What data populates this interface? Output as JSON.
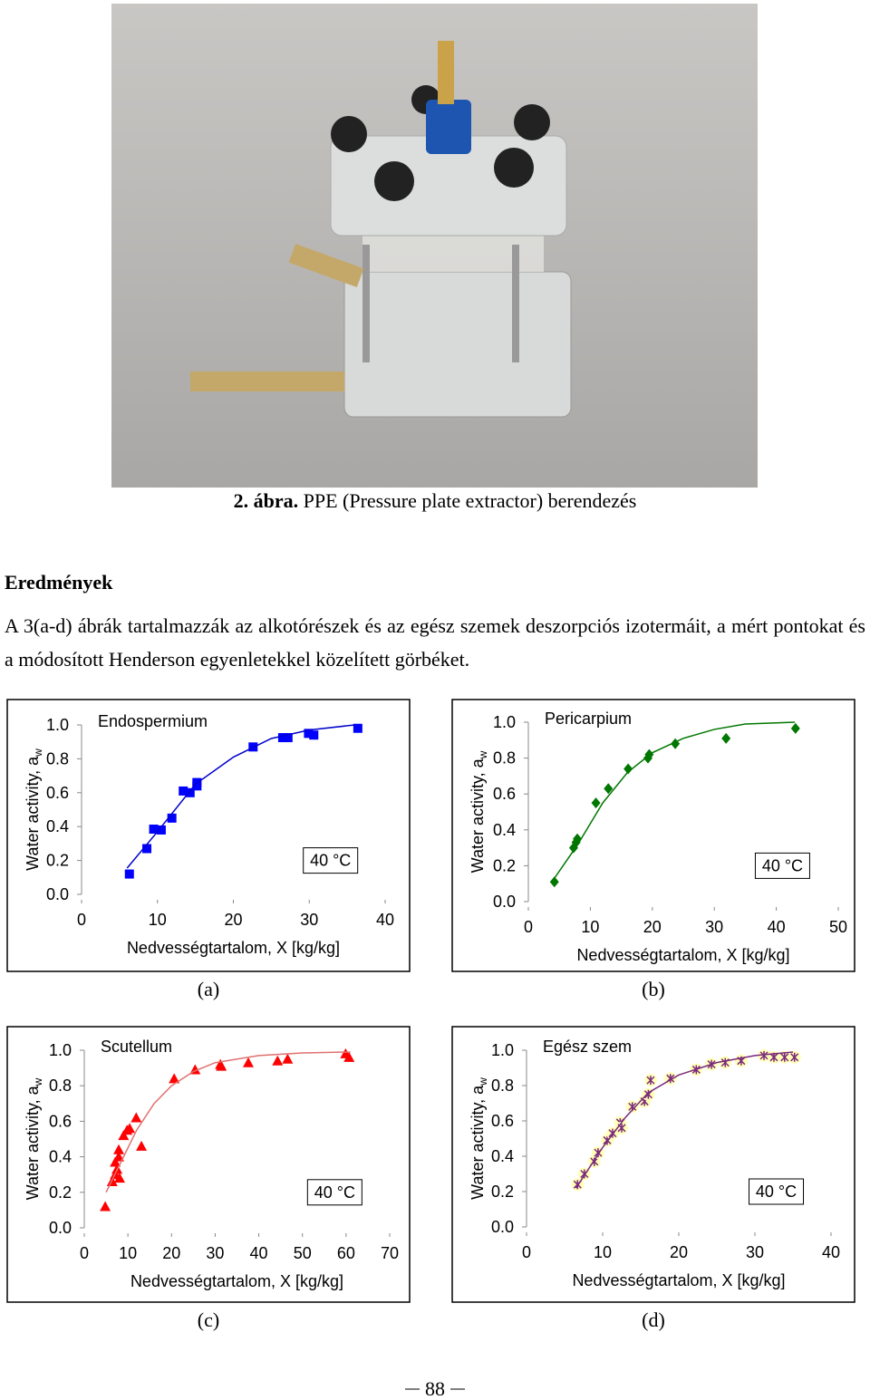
{
  "caption": {
    "label": "2. ábra.",
    "text": "PPE (Pressure plate extractor) berendezés"
  },
  "heading": "Eredmények",
  "paragraph": "A 3(a-d) ábrák tartalmazzák az alkotórészek és az egész szemek deszorpciós izotermáit, a mért pontokat és a módosított Henderson egyenletekkel közelített görbéket.",
  "page_number": "88",
  "chart_data": [
    {
      "type": "scatter",
      "panel": "(a)",
      "title": "Endospermium",
      "annotation": "40 °C",
      "x_label": "Nedvességtartalom, X [kg/kg]",
      "y_label": "Water activity, a",
      "y_label_sub": "w",
      "xlim": [
        0,
        40
      ],
      "xticks": [
        0,
        10,
        20,
        30,
        40
      ],
      "ylim": [
        0,
        1
      ],
      "yticks": [
        {
          "value": 0,
          "label": "0.0"
        },
        0.2,
        0.4,
        0.6,
        0.8,
        {
          "value": 1,
          "label": "1.0"
        }
      ],
      "series": [
        {
          "marker": "square",
          "color": "#0000ff",
          "x": [
            6.3,
            8.6,
            9.5,
            10.5,
            11.9,
            13.4,
            14.3,
            15.2,
            15.2,
            22.6,
            26.5,
            27.2,
            29.9,
            30.6,
            36.4
          ],
          "values": [
            0.12,
            0.27,
            0.385,
            0.38,
            0.45,
            0.61,
            0.6,
            0.66,
            0.64,
            0.87,
            0.925,
            0.925,
            0.95,
            0.94,
            0.98
          ]
        },
        {
          "line": true,
          "color": "#0000cc",
          "x": [
            6,
            10,
            15,
            20,
            25,
            30,
            36
          ],
          "values": [
            0.155,
            0.37,
            0.65,
            0.81,
            0.92,
            0.97,
            1.0
          ]
        }
      ]
    },
    {
      "type": "scatter",
      "panel": "(b)",
      "title": "Pericarpium",
      "annotation": "40 °C",
      "x_label": "Nedvességtartalom, X [kg/kg]",
      "y_label": "Water activity, a",
      "y_label_sub": "w",
      "xlim": [
        0,
        50
      ],
      "xticks": [
        0,
        10,
        20,
        30,
        40,
        50
      ],
      "ylim": [
        0,
        1
      ],
      "yticks": [
        {
          "value": 0,
          "label": "0.0"
        },
        0.2,
        0.4,
        0.6,
        0.8,
        {
          "value": 1,
          "label": "1.0"
        }
      ],
      "series": [
        {
          "marker": "diamond",
          "color": "#007700",
          "x": [
            4.2,
            7.3,
            7.7,
            7.9,
            10.9,
            12.9,
            16.1,
            19.3,
            19.5,
            23.7,
            31.9,
            43.1
          ],
          "values": [
            0.11,
            0.3,
            0.33,
            0.35,
            0.55,
            0.63,
            0.74,
            0.8,
            0.82,
            0.88,
            0.91,
            0.965
          ]
        },
        {
          "line": true,
          "color": "#007700",
          "x": [
            4,
            8,
            12,
            16,
            20,
            25,
            30,
            35,
            43
          ],
          "values": [
            0.12,
            0.32,
            0.55,
            0.72,
            0.83,
            0.91,
            0.96,
            0.99,
            1.0
          ]
        }
      ]
    },
    {
      "type": "scatter",
      "panel": "(c)",
      "title": "Scutellum",
      "annotation": "40 °C",
      "x_label": "Nedvességtartalom, X [kg/kg]",
      "y_label": "Water activity, a",
      "y_label_sub": "w",
      "xlim": [
        0,
        70
      ],
      "xticks": [
        0,
        10,
        20,
        30,
        40,
        50,
        60,
        70
      ],
      "ylim": [
        0,
        1
      ],
      "yticks": [
        {
          "value": 0,
          "label": "0.0"
        },
        0.2,
        0.4,
        0.6,
        0.8,
        {
          "value": 1,
          "label": "1.0"
        }
      ],
      "series": [
        {
          "marker": "triangle",
          "color": "#ff0000",
          "x": [
            4.8,
            6.4,
            7.1,
            7.1,
            7.5,
            7.9,
            8.1,
            7.9,
            9.0,
            9.8,
            10.4,
            11.9,
            13.1,
            20.6,
            25.4,
            31.2,
            31.4,
            37.6,
            44.3,
            46.6,
            59.9,
            60.7
          ],
          "values": [
            0.12,
            0.26,
            0.3,
            0.37,
            0.33,
            0.4,
            0.28,
            0.44,
            0.52,
            0.55,
            0.56,
            0.62,
            0.46,
            0.84,
            0.89,
            0.92,
            0.91,
            0.93,
            0.94,
            0.95,
            0.98,
            0.96
          ]
        },
        {
          "line": true,
          "color": "#e07070",
          "x": [
            5,
            8,
            12,
            16,
            20,
            25,
            30,
            40,
            50,
            61
          ],
          "values": [
            0.2,
            0.35,
            0.55,
            0.7,
            0.8,
            0.88,
            0.93,
            0.97,
            0.985,
            0.99
          ]
        }
      ]
    },
    {
      "type": "scatter",
      "panel": "(d)",
      "title": "Egész szem",
      "annotation": "40 °C",
      "x_label": "Nedvességtartalom, X [kg/kg]",
      "y_label": "Water activity, a",
      "y_label_sub": "w",
      "xlim": [
        0,
        40
      ],
      "xticks": [
        0,
        10,
        20,
        30,
        40
      ],
      "ylim": [
        0,
        1
      ],
      "yticks": [
        {
          "value": 0,
          "label": "0.0"
        },
        0.2,
        0.4,
        0.6,
        0.8,
        {
          "value": 1,
          "label": "1.0"
        }
      ],
      "series": [
        {
          "marker": "x",
          "color": "#7b2a7b",
          "x": [
            6.7,
            7.6,
            8.9,
            9.4,
            10.6,
            11.3,
            12.3,
            12.5,
            13.9,
            15.5,
            16.0,
            16.3,
            18.9,
            22.3,
            24.3,
            26.1,
            28.2,
            31.2,
            32.5,
            33.9,
            35.2
          ],
          "values": [
            0.24,
            0.3,
            0.37,
            0.42,
            0.49,
            0.53,
            0.59,
            0.56,
            0.68,
            0.71,
            0.75,
            0.83,
            0.84,
            0.89,
            0.92,
            0.93,
            0.94,
            0.97,
            0.96,
            0.96,
            0.96
          ]
        },
        {
          "line": true,
          "color": "#7b2a7b",
          "x": [
            6.5,
            10,
            13,
            16,
            20,
            25,
            30,
            35
          ],
          "values": [
            0.22,
            0.45,
            0.62,
            0.76,
            0.86,
            0.93,
            0.97,
            0.99
          ]
        }
      ]
    }
  ]
}
